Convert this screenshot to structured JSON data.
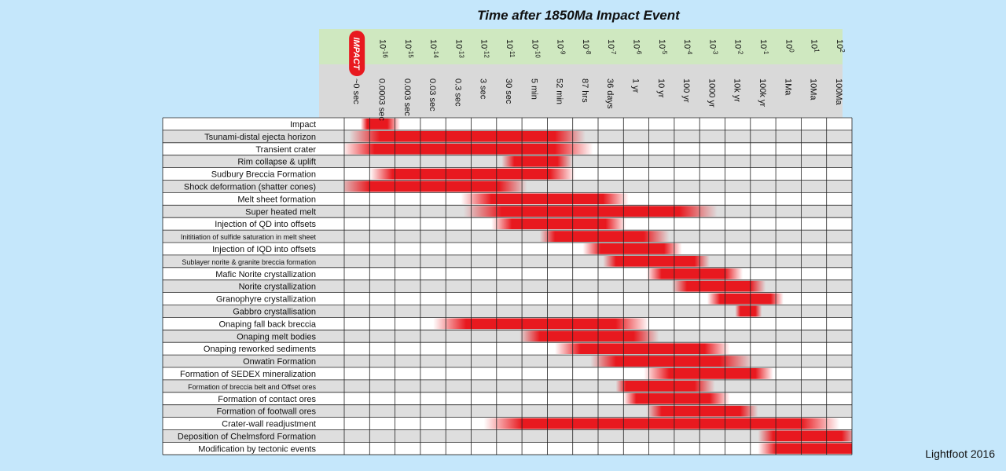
{
  "chart_data": {
    "type": "heatmap",
    "title": "Time after 1850Ma Impact Event",
    "credit": "Lightfoot 2016",
    "impact_label": "IMPACT",
    "colors": {
      "band": "#cfe8c0",
      "subheader": "#d9d9d9",
      "row_shaded": "#dedede",
      "row_plain": "#ffffff",
      "heat": "#e8191f",
      "impact_badge": "#e8191f"
    },
    "columns": [
      {
        "power": "",
        "time": "~0 sec"
      },
      {
        "power": "-16",
        "time": "0.0003 sec"
      },
      {
        "power": "-15",
        "time": "0.003 sec"
      },
      {
        "power": "-14",
        "time": "0.03 sec"
      },
      {
        "power": "-13",
        "time": "0.3 sec"
      },
      {
        "power": "-12",
        "time": "3 sec"
      },
      {
        "power": "-11",
        "time": "30 sec"
      },
      {
        "power": "-10",
        "time": "5 min"
      },
      {
        "power": "-9",
        "time": "52 min"
      },
      {
        "power": "-8",
        "time": "87 hrs"
      },
      {
        "power": "-7",
        "time": "36 days"
      },
      {
        "power": "-6",
        "time": "1 yr"
      },
      {
        "power": "-5",
        "time": "10 yr"
      },
      {
        "power": "-4",
        "time": "100 yr"
      },
      {
        "power": "-3",
        "time": "1000 yr"
      },
      {
        "power": "-2",
        "time": "10k yr"
      },
      {
        "power": "-1",
        "time": "100k yr"
      },
      {
        "power": "0",
        "time": "1Ma"
      },
      {
        "power": "1",
        "time": "10Ma"
      },
      {
        "power": "2",
        "time": "100Ma"
      }
    ],
    "rows": [
      {
        "label": "Impact",
        "small": false,
        "start": 0.9,
        "end": 1.7,
        "fade_in": 0.25,
        "fade_out": 0.5
      },
      {
        "label": "Tsunami-distal ejecta horizon",
        "small": false,
        "start": 1.4,
        "end": 8.3,
        "fade_in": 1.2,
        "fade_out": 1.2
      },
      {
        "label": "Transient crater",
        "small": false,
        "start": 1.2,
        "end": 8.3,
        "fade_in": 1.3,
        "fade_out": 1.5
      },
      {
        "label": "Rim collapse & uplift",
        "small": false,
        "start": 6.7,
        "end": 8.4,
        "fade_in": 0.5,
        "fade_out": 0.6
      },
      {
        "label": "Sudbury Breccia Formation",
        "small": false,
        "start": 1.9,
        "end": 8.1,
        "fade_in": 0.9,
        "fade_out": 1.0
      },
      {
        "label": "Shock deformation (shatter cones)",
        "small": false,
        "start": 1.0,
        "end": 6.1,
        "fade_in": 1.3,
        "fade_out": 1.1
      },
      {
        "label": "Melt sheet formation",
        "small": false,
        "start": 5.8,
        "end": 10.2,
        "fade_in": 1.2,
        "fade_out": 1.0
      },
      {
        "label": "Super heated melt",
        "small": false,
        "start": 6.2,
        "end": 13.2,
        "fade_in": 1.5,
        "fade_out": 1.5
      },
      {
        "label": "Injection of QD into offsets",
        "small": false,
        "start": 6.6,
        "end": 10.3,
        "fade_in": 0.8,
        "fade_out": 0.8
      },
      {
        "label": "Inititiation of sulfide saturation in melt sheet",
        "small": true,
        "start": 8.3,
        "end": 11.8,
        "fade_in": 0.6,
        "fade_out": 1.0
      },
      {
        "label": "Injection of IQD into offsets",
        "small": false,
        "start": 10.1,
        "end": 12.6,
        "fade_in": 0.7,
        "fade_out": 0.7
      },
      {
        "label": "Sublayer norite & granite breccia formation",
        "small": true,
        "start": 10.7,
        "end": 13.8,
        "fade_in": 0.5,
        "fade_out": 0.6
      },
      {
        "label": "Mafic Norite crystallization",
        "small": false,
        "start": 12.5,
        "end": 15.0,
        "fade_in": 0.6,
        "fade_out": 0.7
      },
      {
        "label": "Norite crystallization",
        "small": false,
        "start": 13.5,
        "end": 16.0,
        "fade_in": 0.6,
        "fade_out": 0.6
      },
      {
        "label": "Granophyre crystallization",
        "small": false,
        "start": 14.8,
        "end": 16.8,
        "fade_in": 0.5,
        "fade_out": 0.5
      },
      {
        "label": "Gabbro crystallisation",
        "small": false,
        "start": 15.6,
        "end": 16.2,
        "fade_in": 0.2,
        "fade_out": 0.25
      },
      {
        "label": "Onaping fall back breccia",
        "small": false,
        "start": 4.8,
        "end": 10.7,
        "fade_in": 1.3,
        "fade_out": 1.3
      },
      {
        "label": "Onaping melt bodies",
        "small": false,
        "start": 7.7,
        "end": 11.4,
        "fade_in": 0.8,
        "fade_out": 1.0
      },
      {
        "label": "Onaping reworked sediments",
        "small": false,
        "start": 9.3,
        "end": 14.2,
        "fade_in": 1.0,
        "fade_out": 1.0
      },
      {
        "label": "Onwatin Formation",
        "small": false,
        "start": 10.7,
        "end": 14.8,
        "fade_in": 1.0,
        "fade_out": 1.3
      },
      {
        "label": "Formation of SEDEX mineralization",
        "small": false,
        "start": 12.8,
        "end": 16.2,
        "fade_in": 1.0,
        "fade_out": 0.7
      },
      {
        "label": "Formation of breccia belt and Offset ores",
        "small": true,
        "start": 11.1,
        "end": 13.8,
        "fade_in": 0.4,
        "fade_out": 0.8
      },
      {
        "label": "Formation of contact ores",
        "small": false,
        "start": 11.5,
        "end": 14.4,
        "fade_in": 0.5,
        "fade_out": 0.8
      },
      {
        "label": "Formation of footwall ores",
        "small": false,
        "start": 12.5,
        "end": 15.6,
        "fade_in": 0.6,
        "fade_out": 0.7
      },
      {
        "label": "Crater-wall readjustment",
        "small": false,
        "start": 7.0,
        "end": 18.0,
        "fade_in": 1.5,
        "fade_out": 1.5
      },
      {
        "label": "Deposition of Chelmsford Formation",
        "small": false,
        "start": 16.9,
        "end": 19.6,
        "fade_in": 0.6,
        "fade_out": 0.6
      },
      {
        "label": "Modification by tectonic events",
        "small": false,
        "start": 17.0,
        "end": 20.0,
        "fade_in": 0.7,
        "fade_out": 0.0
      }
    ]
  }
}
